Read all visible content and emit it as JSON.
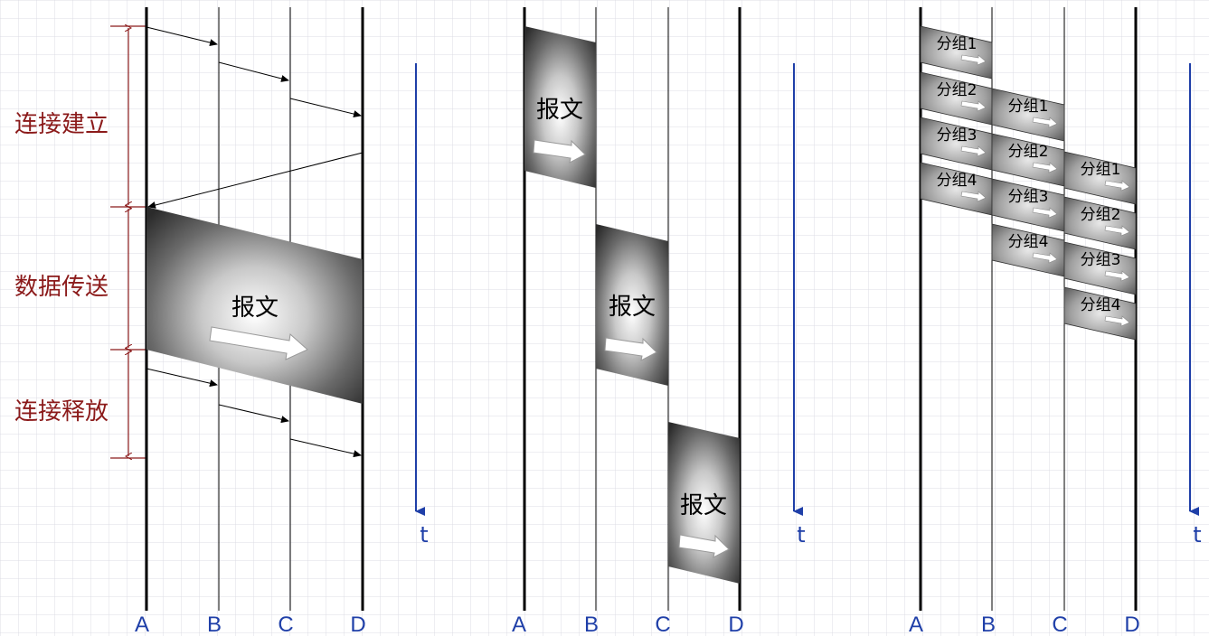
{
  "phases": {
    "connect": "连接建立",
    "transfer": "数据传送",
    "release": "连接释放"
  },
  "diagrams": [
    {
      "type": "circuit-switching",
      "nodes": [
        "A",
        "B",
        "C",
        "D"
      ],
      "message_label": "报文",
      "time_label": "t"
    },
    {
      "type": "message-switching",
      "nodes": [
        "A",
        "B",
        "C",
        "D"
      ],
      "hops": [
        {
          "label": "报文"
        },
        {
          "label": "报文"
        },
        {
          "label": "报文"
        }
      ],
      "time_label": "t"
    },
    {
      "type": "packet-switching",
      "nodes": [
        "A",
        "B",
        "C",
        "D"
      ],
      "packets": [
        {
          "hop": 0,
          "label": "分组1"
        },
        {
          "hop": 0,
          "label": "分组2"
        },
        {
          "hop": 0,
          "label": "分组3"
        },
        {
          "hop": 0,
          "label": "分组4"
        },
        {
          "hop": 1,
          "label": "分组1"
        },
        {
          "hop": 1,
          "label": "分组2"
        },
        {
          "hop": 1,
          "label": "分组3"
        },
        {
          "hop": 1,
          "label": "分组4"
        },
        {
          "hop": 2,
          "label": "分组1"
        },
        {
          "hop": 2,
          "label": "分组2"
        },
        {
          "hop": 2,
          "label": "分组3"
        },
        {
          "hop": 2,
          "label": "分组4"
        }
      ],
      "time_label": "t"
    }
  ],
  "colors": {
    "grid": "#dcdce4",
    "phase": "#8b1a1a",
    "time_axis": "#1f3fa8",
    "node_label": "#1f3fa8",
    "line": "#000000"
  }
}
